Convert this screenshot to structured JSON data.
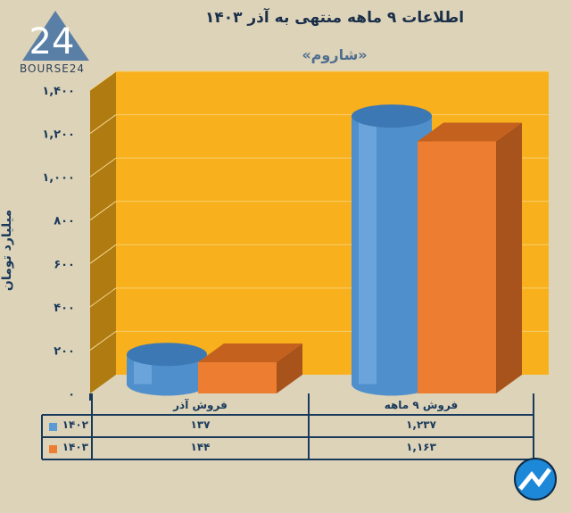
{
  "title": "اطلاعات ۹ ماهه منتهی به آذر ۱۴۰۳",
  "subtitle": "«شاروم»",
  "logo": {
    "text": "BOURSE24"
  },
  "colors": {
    "background": "#ddd3b8",
    "wall": "#f8b01c",
    "side_wall": "#b07b10",
    "series_1402": "#5b9bd5",
    "series_1403": "#ed7d31",
    "text": "#1a3a5c"
  },
  "chart_data": {
    "type": "bar",
    "style": "3d",
    "title": "اطلاعات ۹ ماهه منتهی به آذر ۱۴۰۳",
    "subtitle": "«شاروم»",
    "ylabel": "میلیارد تومان",
    "ylim": [
      0,
      1400
    ],
    "yticks": [
      0,
      200,
      400,
      600,
      800,
      1000,
      1200,
      1400
    ],
    "ytick_labels": [
      "۰",
      "۲۰۰",
      "۴۰۰",
      "۶۰۰",
      "۸۰۰",
      "۱,۰۰۰",
      "۱,۲۰۰",
      "۱,۴۰۰"
    ],
    "grid": true,
    "categories": [
      "فروش آذر",
      "فروش ۹  ماهه"
    ],
    "series": [
      {
        "name": "۱۴۰۲",
        "shape": "cylinder",
        "color": "#5b9bd5",
        "values": [
          137,
          1237
        ],
        "labels": [
          "۱۳۷",
          "۱,۲۳۷"
        ]
      },
      {
        "name": "۱۴۰۳",
        "shape": "box",
        "color": "#ed7d31",
        "values": [
          144,
          1163
        ],
        "labels": [
          "۱۴۴",
          "۱,۱۶۳"
        ]
      }
    ],
    "legend": "data-table"
  }
}
